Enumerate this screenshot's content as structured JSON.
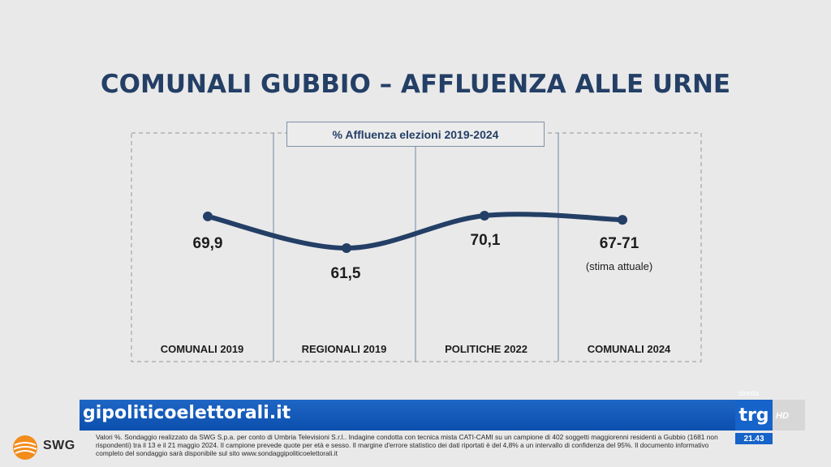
{
  "title": "COMUNALI GUBBIO – AFFLUENZA ALLE URNE",
  "chart_data": {
    "type": "line",
    "title": "% Affluenza elezioni 2019-2024",
    "categories": [
      "COMUNALI 2019",
      "REGIONALI 2019",
      "POLITICHE 2022",
      "COMUNALI 2024"
    ],
    "values": [
      69.9,
      61.5,
      70.1,
      69.0
    ],
    "value_labels": [
      "69,9",
      "61,5",
      "70,1",
      "67-71"
    ],
    "notes": [
      "",
      "",
      "",
      "(stima attuale)"
    ],
    "line_color": "#243f66",
    "grid": false
  },
  "footer": {
    "ticker": "gipoliticoelettorali.it",
    "disclaimer": "Valori %. Sondaggio realizzato da SWG S.p.a. per conto di Umbria Televisioni S.r.l.. Indagine condotta con tecnica mista CATI-CAMI su un campione di 402 soggetti maggiorenni residenti a Gubbio (1681 non rispondenti) tra il 13 e il 21 maggio 2024. Il campione prevede quote per età e sesso. Il margine d'errore statistico dei dati riportati è del 4,8% a un intervallo di confidenza del 95%. Il documento informativo completo del sondaggio sarà disponibile sul sito www.sondaggipoliticoelettorali.it",
    "brand": "SWG",
    "channel_label": "diretta",
    "channel_logo": "trg",
    "channel_suffix": "HD",
    "clock": "21.43"
  }
}
